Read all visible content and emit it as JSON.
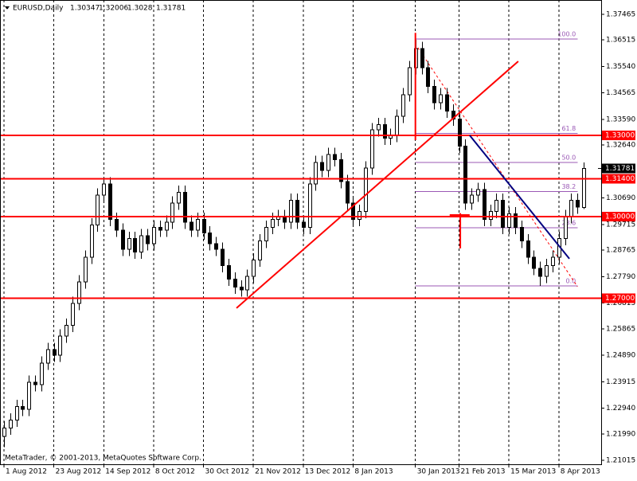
{
  "chart_data": {
    "type": "candlestick",
    "symbol": "EURUSD,Daily",
    "footer": "MetaTrader, © 2001-2013, MetaQuotes Software Corp.",
    "open": [
      1.219,
      1.222,
      1.225,
      1.23,
      1.229,
      1.239,
      1.238,
      1.246,
      1.251,
      1.249,
      1.256,
      1.26,
      1.268,
      1.276,
      1.285,
      1.297,
      1.308,
      1.312,
      1.299,
      1.295,
      1.288,
      1.292,
      1.287,
      1.293,
      1.29,
      1.296,
      1.295,
      1.298,
      1.305,
      1.309,
      1.298,
      1.295,
      1.299,
      1.294,
      1.29,
      1.288,
      1.282,
      1.277,
      1.274,
      1.273,
      1.278,
      1.284,
      1.291,
      1.296,
      1.299,
      1.3,
      1.298,
      1.306,
      1.298,
      1.296,
      1.312,
      1.32,
      1.317,
      1.323,
      1.321,
      1.313,
      1.305,
      1.299,
      1.302,
      1.318,
      1.332,
      1.334,
      1.329,
      1.33,
      1.337,
      1.345,
      1.355,
      1.362,
      1.355,
      1.348,
      1.342,
      1.345,
      1.339,
      1.336,
      1.326,
      1.305,
      1.308,
      1.31,
      1.299,
      1.302,
      1.306,
      1.296,
      1.301,
      1.296,
      1.291,
      1.285,
      1.281,
      1.278,
      1.282,
      1.285,
      1.292,
      1.3,
      1.306,
      1.30347
    ],
    "high": [
      1.2245,
      1.2275,
      1.2325,
      1.2325,
      1.2415,
      1.2415,
      1.2485,
      1.2535,
      1.2535,
      1.2585,
      1.2625,
      1.2705,
      1.2785,
      1.2875,
      1.2995,
      1.3105,
      1.3145,
      1.3145,
      1.3015,
      1.2975,
      1.2945,
      1.2945,
      1.2955,
      1.2955,
      1.2985,
      1.2985,
      1.3005,
      1.3075,
      1.3115,
      1.3115,
      1.3005,
      1.3015,
      1.3015,
      1.2965,
      1.2925,
      1.2905,
      1.2845,
      1.2795,
      1.2765,
      1.2805,
      1.2865,
      1.2935,
      1.2985,
      1.3015,
      1.3025,
      1.3025,
      1.3085,
      1.3085,
      1.3005,
      1.3145,
      1.3225,
      1.3225,
      1.3255,
      1.3255,
      1.3235,
      1.3155,
      1.3075,
      1.3045,
      1.3205,
      1.3345,
      1.3365,
      1.3365,
      1.3325,
      1.3395,
      1.3475,
      1.3575,
      1.3652,
      1.3645,
      1.3575,
      1.3505,
      1.3475,
      1.3475,
      1.3415,
      1.3385,
      1.3285,
      1.3105,
      1.3125,
      1.3125,
      1.3045,
      1.3085,
      1.3085,
      1.3035,
      1.3035,
      1.2985,
      1.2935,
      1.2875,
      1.2835,
      1.2845,
      1.2875,
      1.2945,
      1.3025,
      1.3085,
      1.3085,
      1.32006
    ],
    "low": [
      1.215,
      1.2195,
      1.2225,
      1.2265,
      1.2265,
      1.2355,
      1.2355,
      1.2435,
      1.2465,
      1.2465,
      1.2535,
      1.2575,
      1.2655,
      1.2735,
      1.2825,
      1.2945,
      1.3055,
      1.2965,
      1.2925,
      1.2855,
      1.2855,
      1.2845,
      1.2845,
      1.2875,
      1.2875,
      1.2925,
      1.2925,
      1.2955,
      1.3025,
      1.2955,
      1.2925,
      1.2925,
      1.2915,
      1.2875,
      1.2855,
      1.2795,
      1.2745,
      1.2715,
      1.2705,
      1.2705,
      1.2755,
      1.2815,
      1.2885,
      1.2935,
      1.2965,
      1.2955,
      1.2955,
      1.2955,
      1.2935,
      1.2935,
      1.3095,
      1.3145,
      1.3145,
      1.3185,
      1.3105,
      1.3025,
      1.2965,
      1.2965,
      1.2995,
      1.3155,
      1.3295,
      1.3265,
      1.3265,
      1.3275,
      1.3345,
      1.3425,
      1.3525,
      1.3525,
      1.3455,
      1.3395,
      1.3395,
      1.3365,
      1.3335,
      1.3235,
      1.3025,
      1.3025,
      1.3055,
      1.2965,
      1.2965,
      1.2995,
      1.2935,
      1.2935,
      1.2935,
      1.2885,
      1.2825,
      1.2785,
      1.2745,
      1.2755,
      1.2795,
      1.2825,
      1.2895,
      1.2975,
      1.301,
      1.3028
    ],
    "close": [
      1.222,
      1.225,
      1.23,
      1.229,
      1.239,
      1.238,
      1.246,
      1.251,
      1.249,
      1.256,
      1.26,
      1.268,
      1.276,
      1.285,
      1.297,
      1.308,
      1.312,
      1.299,
      1.295,
      1.288,
      1.292,
      1.287,
      1.293,
      1.29,
      1.296,
      1.295,
      1.298,
      1.305,
      1.309,
      1.298,
      1.295,
      1.299,
      1.294,
      1.29,
      1.288,
      1.282,
      1.277,
      1.274,
      1.273,
      1.278,
      1.284,
      1.291,
      1.296,
      1.299,
      1.3,
      1.298,
      1.306,
      1.298,
      1.296,
      1.312,
      1.32,
      1.317,
      1.323,
      1.321,
      1.313,
      1.305,
      1.299,
      1.302,
      1.318,
      1.332,
      1.334,
      1.329,
      1.33,
      1.337,
      1.345,
      1.355,
      1.362,
      1.355,
      1.348,
      1.342,
      1.345,
      1.339,
      1.336,
      1.326,
      1.305,
      1.308,
      1.31,
      1.299,
      1.302,
      1.306,
      1.296,
      1.301,
      1.296,
      1.291,
      1.285,
      1.281,
      1.278,
      1.282,
      1.285,
      1.292,
      1.3,
      1.306,
      1.3035,
      1.31781
    ],
    "xlim": [
      -0.64,
      95.8
    ],
    "ylim": [
      1.2087,
      1.3799
    ],
    "yticks": [
      {
        "value": 1.37465,
        "label": "1.37465"
      },
      {
        "value": 1.36515,
        "label": "1.36515"
      },
      {
        "value": 1.3554,
        "label": "1.35540"
      },
      {
        "value": 1.34565,
        "label": "1.34565"
      },
      {
        "value": 1.3359,
        "label": "1.33590"
      },
      {
        "value": 1.3264,
        "label": "1.32640"
      },
      {
        "value": 1.3069,
        "label": "1.30690"
      },
      {
        "value": 1.29715,
        "label": "1.29715"
      },
      {
        "value": 1.28765,
        "label": "1.28765"
      },
      {
        "value": 1.2779,
        "label": "1.27790"
      },
      {
        "value": 1.26815,
        "label": "1.26815"
      },
      {
        "value": 1.25865,
        "label": "1.25865"
      },
      {
        "value": 1.2489,
        "label": "1.24890"
      },
      {
        "value": 1.23915,
        "label": "1.23915"
      },
      {
        "value": 1.2294,
        "label": "1.22940"
      },
      {
        "value": 1.2199,
        "label": "1.21990"
      },
      {
        "value": 1.21015,
        "label": "1.21015"
      }
    ],
    "xticks": [
      {
        "value": 0,
        "label": "1 Aug 2012"
      },
      {
        "value": 8,
        "label": "23 Aug 2012"
      },
      {
        "value": 16,
        "label": "14 Sep 2012"
      },
      {
        "value": 24,
        "label": "8 Oct 2012"
      },
      {
        "value": 32,
        "label": "30 Oct 2012"
      },
      {
        "value": 40,
        "label": "21 Nov 2012"
      },
      {
        "value": 48,
        "label": "13 Dec 2012"
      },
      {
        "value": 56,
        "label": "8 Jan 2013"
      },
      {
        "value": 66,
        "label": "30 Jan 2013"
      },
      {
        "value": 73,
        "label": "21 Feb 2013"
      },
      {
        "value": 81,
        "label": "15 Mar 2013"
      },
      {
        "value": 89,
        "label": "8 Apr 2013"
      }
    ],
    "grid": true,
    "hlines": [
      {
        "value": 1.33,
        "label": "1.33000"
      },
      {
        "value": 1.314,
        "label": "1.31400"
      },
      {
        "value": 1.3,
        "label": "1.30000"
      },
      {
        "value": 1.27,
        "label": "1.27000"
      }
    ],
    "hline_color": "#ff0000",
    "fibo": {
      "color": "#9b59b6",
      "start": 66,
      "end": 92,
      "high": 1.3655,
      "low": 1.2745,
      "levels": [
        {
          "value": 100,
          "label": "100.0"
        },
        61.8,
        {
          "value": 50,
          "label": "50.0"
        },
        38.2,
        23.6,
        {
          "value": 0,
          "label": "0.0"
        }
      ]
    },
    "trendlines": [
      {
        "x": [
          37.3,
          82.5
        ],
        "y": [
          1.2663,
          1.3573
        ],
        "color": "#ff0000"
      },
      {
        "x": [
          74.7,
          90.7
        ],
        "y": [
          1.33,
          1.2845
        ],
        "color": "#000080"
      },
      {
        "x": [
          66,
          66
        ],
        "y": [
          1.3678,
          1.3282
        ],
        "color": "#ff0000"
      },
      {
        "x": [
          73.2,
          73.2
        ],
        "y": [
          1.3013,
          1.2883
        ],
        "color": "#ff0000"
      },
      {
        "x": [
          71.5,
          74.7
        ],
        "y": [
          1.3006,
          1.3006
        ],
        "color": "#ff0000"
      }
    ],
    "dashed_lines": [
      {
        "x": [
          66.4,
          92
        ],
        "y": [
          1.3623,
          1.2742
        ],
        "color": "#ff0000"
      }
    ]
  }
}
